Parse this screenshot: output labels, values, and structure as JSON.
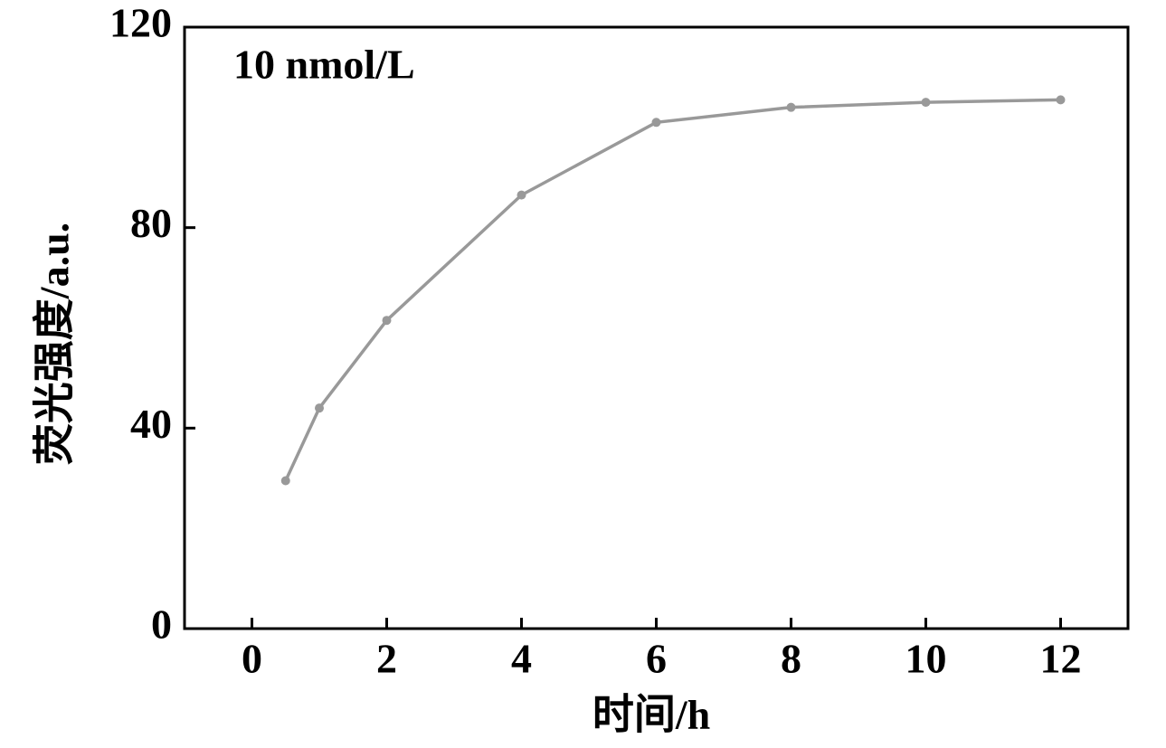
{
  "chart_data": {
    "type": "line",
    "annotation": "10 nmol/L",
    "xlabel": "时间/h",
    "ylabel": "荧光强度/a.u.",
    "x": [
      0.5,
      1,
      2,
      4,
      6,
      8,
      10,
      12
    ],
    "values": [
      29.5,
      44,
      61.5,
      86.5,
      101,
      104,
      105,
      105.5
    ],
    "color": "#999999",
    "xlim": [
      -1,
      13
    ],
    "xticks": [
      0,
      2,
      4,
      6,
      8,
      10,
      12
    ],
    "ylim": [
      0,
      120
    ],
    "yticks": [
      0,
      40,
      80,
      120
    ]
  }
}
